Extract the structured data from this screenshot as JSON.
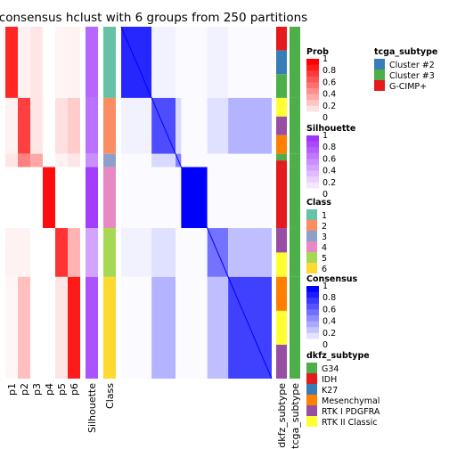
{
  "chart_data": {
    "type": "heatmap",
    "title": "consensus hclust with 6 groups from 250 partitions",
    "row_annotations": {
      "prob_columns": [
        "p1",
        "p2",
        "p3",
        "p4",
        "p5",
        "p6"
      ],
      "silhouette_label": "Silhouette",
      "class_label": "Class"
    },
    "column_annotations": [
      "dkfz_subtype",
      "tcga_subtype"
    ],
    "groups": [
      {
        "class": 1,
        "size": 70,
        "dkfz": [
          "IDH",
          "K27",
          "G34"
        ],
        "tcga": "Cluster #3"
      },
      {
        "class": 2,
        "size": 55,
        "dkfz": [
          "RTK II Classic",
          "RTK I PDGFRA",
          "Mesenchymal"
        ],
        "tcga": "Cluster #3"
      },
      {
        "class": 3,
        "size": 13,
        "dkfz": [
          "G34",
          "IDH"
        ],
        "tcga": "Cluster #3"
      },
      {
        "class": 4,
        "size": 60,
        "dkfz": [
          "IDH"
        ],
        "tcga": "Cluster #3"
      },
      {
        "class": 5,
        "size": 48,
        "dkfz": [
          "RTK I PDGFRA",
          "RTK II Classic"
        ],
        "tcga": "Cluster #3"
      },
      {
        "class": 6,
        "size": 100,
        "dkfz": [
          "Mesenchymal",
          "RTK II Classic",
          "RTK I PDGFRA"
        ],
        "tcga": "Cluster #3"
      }
    ],
    "legends": [
      {
        "title": "Prob",
        "type": "continuous",
        "colors": [
          "#ffffff",
          "#ff0000"
        ],
        "ticks": [
          "1",
          "0.8",
          "0.6",
          "0.4",
          "0.2",
          "0"
        ]
      },
      {
        "title": "Silhouette",
        "type": "continuous",
        "colors": [
          "#ffffff",
          "#9f33ff"
        ],
        "ticks": [
          "1",
          "0.8",
          "0.6",
          "0.4",
          "0.2",
          "0"
        ]
      },
      {
        "title": "Class",
        "type": "discrete",
        "items": [
          {
            "label": "1",
            "color": "#66C2A5"
          },
          {
            "label": "2",
            "color": "#FC8D62"
          },
          {
            "label": "3",
            "color": "#8DA0CB"
          },
          {
            "label": "4",
            "color": "#E78AC3"
          },
          {
            "label": "5",
            "color": "#A6D854"
          },
          {
            "label": "6",
            "color": "#FFD92F"
          }
        ]
      },
      {
        "title": "Consensus",
        "type": "continuous",
        "colors": [
          "#ffffff",
          "#0000ff"
        ],
        "ticks": [
          "1",
          "0.8",
          "0.6",
          "0.4",
          "0.2",
          "0"
        ]
      },
      {
        "title": "dkfz_subtype",
        "type": "discrete",
        "items": [
          {
            "label": "G34",
            "color": "#4DAF4A"
          },
          {
            "label": "IDH",
            "color": "#E41A1C"
          },
          {
            "label": "K27",
            "color": "#377EB8"
          },
          {
            "label": "Mesenchymal",
            "color": "#FF7F00"
          },
          {
            "label": "RTK I PDGFRA",
            "color": "#984EA3"
          },
          {
            "label": "RTK II Classic",
            "color": "#FFFF33"
          }
        ]
      },
      {
        "title": "tcga_subtype",
        "type": "discrete",
        "items": [
          {
            "label": "Cluster #2",
            "color": "#377EB8"
          },
          {
            "label": "Cluster #3",
            "color": "#4DAF4A"
          },
          {
            "label": "G-CIMP+",
            "color": "#E41A1C"
          }
        ]
      }
    ]
  }
}
